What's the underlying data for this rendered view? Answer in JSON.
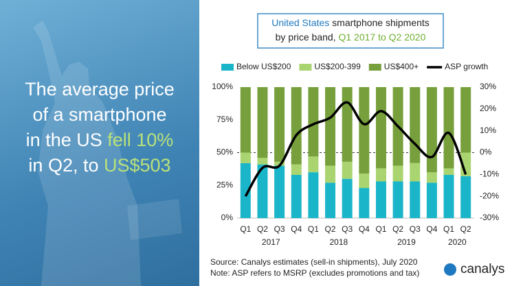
{
  "headline": {
    "line1": "The average price",
    "line2": "of a smartphone",
    "line3a": "in the US",
    "line3b": "fell 10%",
    "line4a": "in Q2, to",
    "line4b": "US$503"
  },
  "chart_data": {
    "type": "bar",
    "stacked": true,
    "title": {
      "part1": "United States",
      "part2": "smartphone shipments",
      "part3": "by price band,",
      "part4": "Q1 2017 to Q2 2020"
    },
    "categories": [
      "Q1",
      "Q2",
      "Q3",
      "Q4",
      "Q1",
      "Q2",
      "Q3",
      "Q4",
      "Q1",
      "Q2",
      "Q3",
      "Q4",
      "Q1",
      "Q2"
    ],
    "years": [
      "2017",
      "2018",
      "2019",
      "2020"
    ],
    "series": [
      {
        "name": "Below US$200",
        "color": "#1bb5c9",
        "values": [
          42,
          41,
          40,
          33,
          35,
          27,
          30,
          23,
          28,
          28,
          28,
          27,
          33,
          32
        ]
      },
      {
        "name": "US$200-399",
        "color": "#a9d470",
        "values": [
          8,
          5,
          3,
          8,
          12,
          13,
          13,
          11,
          10,
          12,
          14,
          8,
          5,
          18
        ]
      },
      {
        "name": "US$400+",
        "color": "#77a03c",
        "values": [
          50,
          54,
          57,
          59,
          53,
          60,
          57,
          66,
          62,
          60,
          58,
          65,
          62,
          50
        ]
      },
      {
        "name": "ASP growth",
        "type": "line",
        "axis": "y2",
        "color": "#000000",
        "values": [
          -20,
          -7,
          -6,
          8,
          13,
          16,
          23,
          13,
          19,
          12,
          4,
          -2,
          9,
          -10
        ]
      }
    ],
    "ylim": [
      0,
      100
    ],
    "yticks": [
      {
        "value": 0,
        "label": "0%"
      },
      {
        "value": 25,
        "label": "25%"
      },
      {
        "value": 50,
        "label": "50%"
      },
      {
        "value": 75,
        "label": "75%"
      },
      {
        "value": 100,
        "label": "100%"
      }
    ],
    "y2lim": [
      -30,
      30
    ],
    "y2ticks": [
      {
        "value": -30,
        "label": "-30%"
      },
      {
        "value": -20,
        "label": "-20%"
      },
      {
        "value": -10,
        "label": "-10%"
      },
      {
        "value": 0,
        "label": "0%"
      },
      {
        "value": 10,
        "label": "10%"
      },
      {
        "value": 20,
        "label": "20%"
      },
      {
        "value": 30,
        "label": "30%"
      }
    ],
    "legend": "top",
    "source": "Source: Canalys estimates (sell-in shipments), July 2020",
    "note": "Note: ASP refers to MSRP (excludes promotions and tax)",
    "logo": "canalys"
  }
}
